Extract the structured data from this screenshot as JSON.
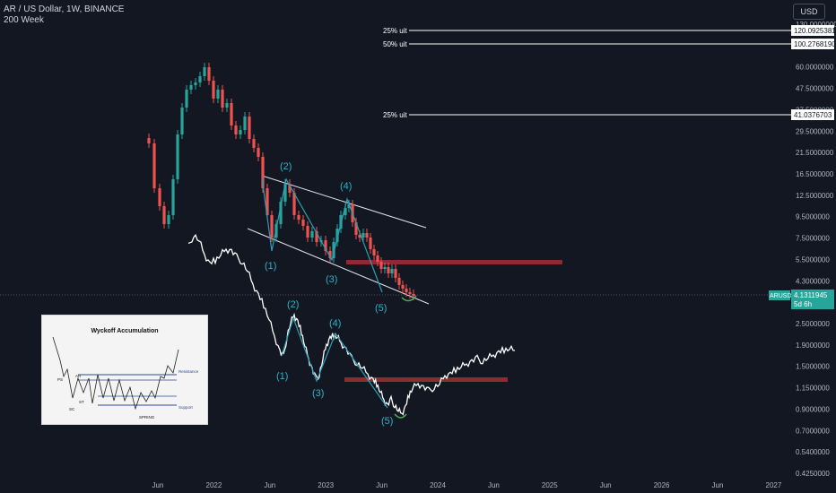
{
  "header": {
    "symbol_line": "AR / US Dollar, 1W, BINANCE",
    "indicator": "200 Week"
  },
  "currency_button": "USD",
  "ticker": {
    "symbol": "ARUSD",
    "price": "4.1311945",
    "countdown": "5d 6h"
  },
  "colors": {
    "background": "#131722",
    "candle_up": "#26a69a",
    "candle_down": "#ef5350",
    "line_series": "#ffffff",
    "wave_lines": "#2b9fb3",
    "wave_labels": "#2bb3c7",
    "resistance_zone": "#8f2a33",
    "ticker_badge": "#26a69a",
    "spring_curve": "#4caf50"
  },
  "chart_data": {
    "type": "candlestick",
    "y_scale": "log",
    "y_ticks": [
      "130.0000000",
      "87.0000000",
      "60.0000000",
      "47.5000000",
      "37.5000000",
      "29.5000000",
      "21.5000000",
      "16.5000000",
      "12.5000000",
      "9.5000000",
      "7.5000000",
      "5.5000000",
      "4.3000000",
      "3.3000000",
      "2.5000000",
      "1.9000000",
      "1.5000000",
      "1.1500000",
      "0.9000000",
      "0.7000000",
      "0.5400000",
      "0.4250000"
    ],
    "x_ticks": [
      "Jun",
      "2022",
      "Jun",
      "2023",
      "Jun",
      "2024",
      "Jun",
      "2025",
      "Jun",
      "2026",
      "Jun",
      "2027"
    ],
    "target_lines": [
      {
        "label": "25% uit",
        "value": "120.0925381"
      },
      {
        "label": "50% uit",
        "value": "100.2768190"
      },
      {
        "label": "25% uit",
        "value": "41.0376703"
      }
    ],
    "candle_wave_labels": [
      "(1)",
      "(2)",
      "(3)",
      "(4)",
      "(5)"
    ],
    "line_wave_labels": [
      "(1)",
      "(2)",
      "(3)",
      "(4)",
      "(5)"
    ],
    "resistance_zones": [
      {
        "series": "candles",
        "value": 6.1
      },
      {
        "series": "line",
        "value": 1.4
      }
    ],
    "wyckoff_inset": {
      "title": "Wyckoff Accumulation",
      "labels": [
        "PS",
        "AR",
        "SC",
        "ST",
        "SPRING"
      ],
      "levels": [
        "Resistance",
        "Support"
      ]
    }
  }
}
